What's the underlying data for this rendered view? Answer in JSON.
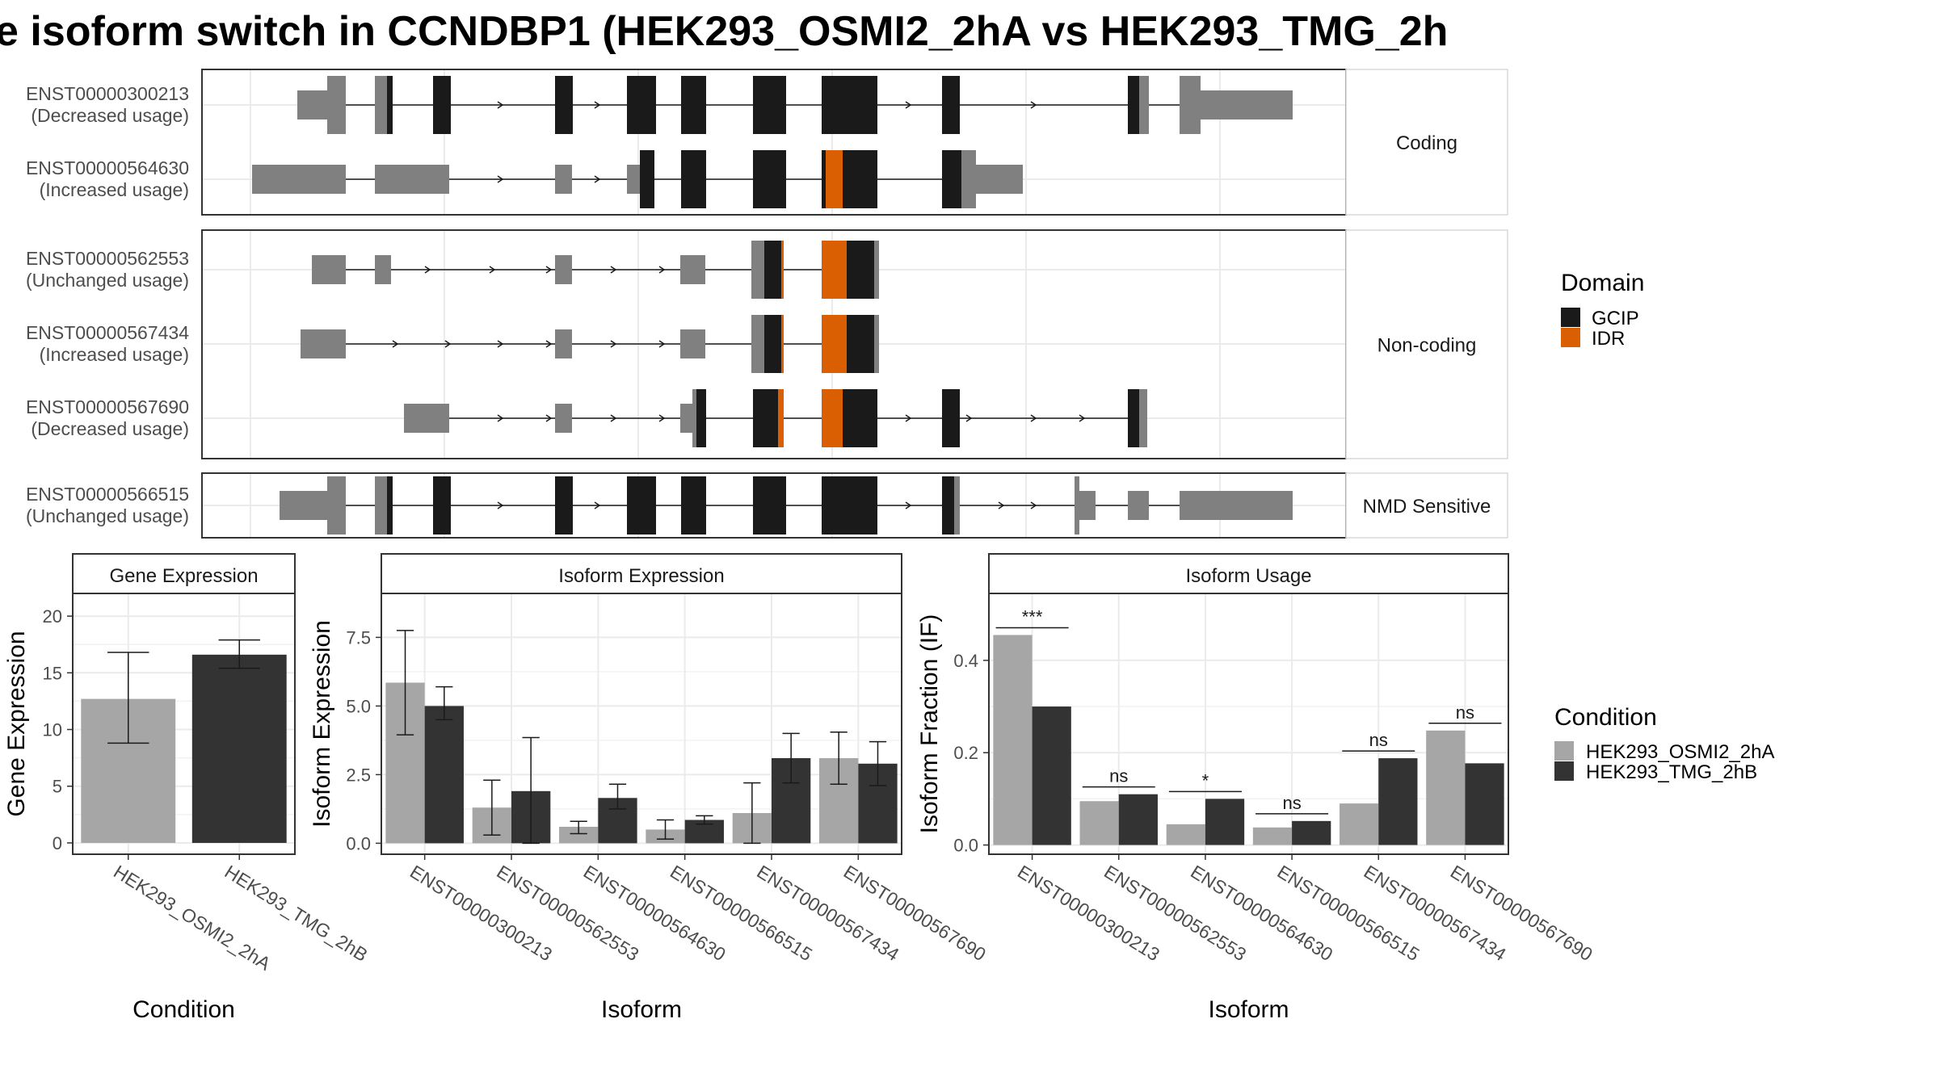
{
  "title": "e isoform switch in CCNDBP1 (HEK293_OSMI2_2hA vs HEK293_TMG_2h",
  "colors": {
    "gcip": "#1a1a1a",
    "idr": "#d95f02",
    "utr": "#808080",
    "cond_a": "#a6a6a6",
    "cond_b": "#333333",
    "grid": "#ebebeb",
    "strip_bg": "#ffffff",
    "panel_border": "#333333"
  },
  "structure": {
    "groups": [
      {
        "label": "Coding",
        "transcripts": [
          {
            "id": "ENST00000300213",
            "usage": "(Decreased usage)"
          },
          {
            "id": "ENST00000564630",
            "usage": "(Increased usage)"
          }
        ]
      },
      {
        "label": "Non-coding",
        "transcripts": [
          {
            "id": "ENST00000562553",
            "usage": "(Unchanged usage)"
          },
          {
            "id": "ENST00000567434",
            "usage": "(Increased usage)"
          },
          {
            "id": "ENST00000567690",
            "usage": "(Decreased usage)"
          }
        ]
      },
      {
        "label": "NMD Sensitive",
        "transcripts": [
          {
            "id": "ENST00000566515",
            "usage": "(Unchanged usage)"
          }
        ]
      }
    ],
    "domain_legend": {
      "title": "Domain",
      "items": [
        {
          "label": "GCIP",
          "color": "#1a1a1a"
        },
        {
          "label": "IDR",
          "color": "#d95f02"
        }
      ]
    }
  },
  "chart_data": [
    {
      "type": "bar",
      "title": "Gene Expression",
      "xlabel": "Condition",
      "ylabel": "Gene Expression",
      "ylim": [
        -1,
        22
      ],
      "yticks": [
        0,
        5,
        10,
        15,
        20
      ],
      "ytick_labels": [
        "0",
        "5",
        "10",
        "15",
        "20"
      ],
      "categories": [
        "HEK293_OSMI2_2hA",
        "HEK293_TMG_2hB"
      ],
      "values": [
        12.7,
        16.6
      ],
      "errors": [
        [
          8.8,
          16.8
        ],
        [
          15.4,
          17.9
        ]
      ]
    },
    {
      "type": "bar",
      "title": "Isoform Expression",
      "xlabel": "Isoform",
      "ylabel": "Isoform Expression",
      "ylim": [
        -0.4,
        9.1
      ],
      "yticks": [
        0,
        2.5,
        5,
        7.5
      ],
      "ytick_labels": [
        "0.0",
        "2.5",
        "5.0",
        "7.5"
      ],
      "categories": [
        "ENST00000300213",
        "ENST00000562553",
        "ENST00000564630",
        "ENST00000566515",
        "ENST00000567434",
        "ENST00000567690"
      ],
      "series": [
        {
          "name": "HEK293_OSMI2_2hA",
          "values": [
            5.85,
            1.3,
            0.6,
            0.5,
            1.1,
            3.1
          ],
          "errors": [
            [
              3.95,
              7.75
            ],
            [
              0.3,
              2.3
            ],
            [
              0.35,
              0.8
            ],
            [
              0.15,
              0.85
            ],
            [
              0.0,
              2.2
            ],
            [
              2.15,
              4.05
            ]
          ]
        },
        {
          "name": "HEK293_TMG_2hB",
          "values": [
            5.0,
            1.9,
            1.65,
            0.85,
            3.1,
            2.9
          ],
          "errors": [
            [
              4.5,
              5.7
            ],
            [
              0.0,
              3.85
            ],
            [
              1.25,
              2.15
            ],
            [
              0.7,
              1.0
            ],
            [
              2.2,
              4.0
            ],
            [
              2.1,
              3.7
            ]
          ]
        }
      ]
    },
    {
      "type": "bar",
      "title": "Isoform Usage",
      "xlabel": "Isoform",
      "ylabel": "Isoform Fraction (IF)",
      "ylim": [
        -0.02,
        0.545
      ],
      "yticks": [
        0,
        0.2,
        0.4
      ],
      "ytick_labels": [
        "0.0",
        "0.2",
        "0.4"
      ],
      "categories": [
        "ENST00000300213",
        "ENST00000562553",
        "ENST00000564630",
        "ENST00000566515",
        "ENST00000567434",
        "ENST00000567690"
      ],
      "series": [
        {
          "name": "HEK293_OSMI2_2hA",
          "values": [
            0.455,
            0.095,
            0.045,
            0.038,
            0.09,
            0.248
          ]
        },
        {
          "name": "HEK293_TMG_2hB",
          "values": [
            0.3,
            0.11,
            0.1,
            0.052,
            0.188,
            0.177
          ]
        }
      ],
      "significance": [
        "***",
        "ns",
        "*",
        "ns",
        "ns",
        "ns"
      ]
    }
  ],
  "condition_legend": {
    "title": "Condition",
    "items": [
      {
        "label": "HEK293_OSMI2_2hA",
        "color": "#a6a6a6"
      },
      {
        "label": "HEK293_TMG_2hB",
        "color": "#333333"
      }
    ]
  }
}
